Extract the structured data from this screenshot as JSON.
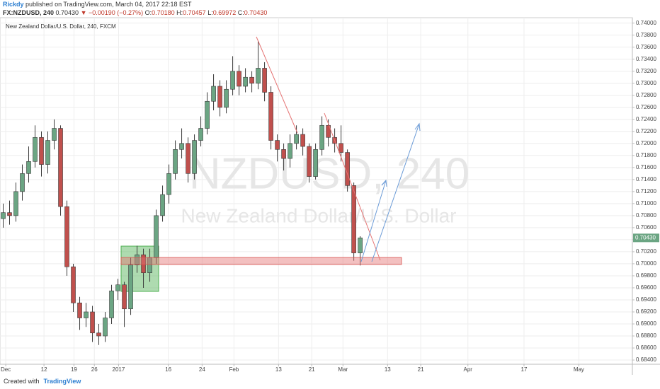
{
  "header": {
    "author": "Rickdy",
    "published": "published on TradingView.com, March 04, 2017 22:18 EST",
    "symbol": "FX:NZDUSD, 240",
    "last": "0.70430",
    "change": "▼ −0.00190 (−0.27%)",
    "ohlc": [
      {
        "label": "O:",
        "value": "0.70180"
      },
      {
        "label": "H:",
        "value": "0.70457"
      },
      {
        "label": "L:",
        "value": "0.69972"
      },
      {
        "label": "C:",
        "value": "0.70430"
      }
    ]
  },
  "chart_data": {
    "type": "candlestick",
    "title": "New Zealand Dollar/U.S. Dollar, 240, FXCM",
    "watermark": "NZDUSD, 240",
    "watermark_subtitle": "New Zealand Dollar/U.S. Dollar",
    "up_color": "#6ba583",
    "down_color": "#c0504d",
    "wick_color": "#3a3a3a",
    "grid": true,
    "x": [
      0,
      1,
      2,
      3,
      4,
      5,
      6,
      7,
      8,
      9,
      10,
      11,
      12,
      13,
      14,
      15,
      16,
      17,
      18,
      19,
      20,
      21,
      22,
      23,
      24,
      25,
      26,
      27,
      28,
      29,
      30,
      31,
      32,
      33,
      34,
      35,
      36,
      37,
      38,
      39,
      40,
      41,
      42,
      43,
      44,
      45,
      46,
      47,
      48,
      49,
      50,
      51,
      52,
      53,
      54,
      55,
      56
    ],
    "open": [
      0.7075,
      0.7085,
      0.708,
      0.712,
      0.715,
      0.717,
      0.721,
      0.7165,
      0.7205,
      0.7225,
      0.7095,
      0.6995,
      0.6935,
      0.691,
      0.692,
      0.6885,
      0.688,
      0.691,
      0.6955,
      0.6965,
      0.6925,
      0.6998,
      0.7015,
      0.6985,
      0.701,
      0.708,
      0.7115,
      0.715,
      0.719,
      0.72,
      0.715,
      0.7205,
      0.7225,
      0.727,
      0.7295,
      0.726,
      0.729,
      0.732,
      0.7295,
      0.731,
      0.73,
      0.7325,
      0.7285,
      0.7205,
      0.719,
      0.7175,
      0.72,
      0.7215,
      0.7195,
      0.7145,
      0.719,
      0.723,
      0.721,
      0.72,
      0.7185,
      0.713,
      0.7018
    ],
    "high": [
      0.71,
      0.7105,
      0.7135,
      0.7165,
      0.7195,
      0.723,
      0.722,
      0.722,
      0.724,
      0.723,
      0.7105,
      0.7,
      0.6945,
      0.6935,
      0.693,
      0.69,
      0.692,
      0.6965,
      0.6975,
      0.697,
      0.701,
      0.703,
      0.7025,
      0.7025,
      0.709,
      0.713,
      0.7165,
      0.7205,
      0.7225,
      0.721,
      0.7215,
      0.7245,
      0.7285,
      0.7315,
      0.7305,
      0.7305,
      0.7345,
      0.733,
      0.7325,
      0.732,
      0.737,
      0.7335,
      0.7295,
      0.7215,
      0.72,
      0.7215,
      0.723,
      0.7225,
      0.72,
      0.72,
      0.7245,
      0.724,
      0.7225,
      0.723,
      0.719,
      0.7135,
      0.70457
    ],
    "low": [
      0.706,
      0.7065,
      0.707,
      0.7105,
      0.7135,
      0.716,
      0.7145,
      0.715,
      0.719,
      0.708,
      0.698,
      0.692,
      0.689,
      0.6895,
      0.687,
      0.6865,
      0.687,
      0.69,
      0.694,
      0.6895,
      0.6915,
      0.6985,
      0.696,
      0.697,
      0.7,
      0.707,
      0.71,
      0.714,
      0.7175,
      0.7135,
      0.714,
      0.7195,
      0.7215,
      0.7255,
      0.7245,
      0.725,
      0.728,
      0.728,
      0.7285,
      0.7285,
      0.729,
      0.727,
      0.719,
      0.717,
      0.7155,
      0.716,
      0.719,
      0.718,
      0.7135,
      0.714,
      0.718,
      0.7195,
      0.7185,
      0.717,
      0.712,
      0.7005,
      0.69972
    ],
    "close": [
      0.7085,
      0.708,
      0.712,
      0.715,
      0.717,
      0.721,
      0.7165,
      0.7205,
      0.7225,
      0.7095,
      0.6995,
      0.6935,
      0.691,
      0.692,
      0.6885,
      0.688,
      0.691,
      0.6955,
      0.6965,
      0.6925,
      0.6998,
      0.7015,
      0.6985,
      0.701,
      0.708,
      0.7115,
      0.715,
      0.719,
      0.72,
      0.715,
      0.7205,
      0.7225,
      0.727,
      0.7295,
      0.726,
      0.729,
      0.732,
      0.7295,
      0.731,
      0.73,
      0.7325,
      0.7285,
      0.7205,
      0.719,
      0.7175,
      0.72,
      0.7215,
      0.7195,
      0.7145,
      0.719,
      0.723,
      0.721,
      0.72,
      0.7185,
      0.713,
      0.7018,
      0.7043
    ],
    "price_tag": {
      "value": 0.7043,
      "label": "0.70430"
    },
    "xlim": [
      -0.5,
      98.7
    ],
    "ylim": [
      0.6833,
      0.7409
    ],
    "xticks": [
      {
        "value": 0.4,
        "label": "Dec"
      },
      {
        "value": 6.4,
        "label": "12"
      },
      {
        "value": 11.1,
        "label": "19"
      },
      {
        "value": 14.3,
        "label": "26"
      },
      {
        "value": 18.1,
        "label": "2017"
      },
      {
        "value": 25.9,
        "label": "16"
      },
      {
        "value": 31.2,
        "label": "24"
      },
      {
        "value": 36.2,
        "label": "Feb"
      },
      {
        "value": 43.2,
        "label": "13"
      },
      {
        "value": 48.4,
        "label": "21"
      },
      {
        "value": 53.3,
        "label": "Mar"
      },
      {
        "value": 60.3,
        "label": "13"
      },
      {
        "value": 65.5,
        "label": "21"
      },
      {
        "value": 72.9,
        "label": "Apr"
      },
      {
        "value": 81.7,
        "label": "17"
      },
      {
        "value": 90.3,
        "label": "May"
      }
    ],
    "yticks": [
      {
        "value": 0.684,
        "label": "0.68400"
      },
      {
        "value": 0.686,
        "label": "0.68600"
      },
      {
        "value": 0.688,
        "label": "0.68800"
      },
      {
        "value": 0.69,
        "label": "0.69000"
      },
      {
        "value": 0.692,
        "label": "0.69200"
      },
      {
        "value": 0.694,
        "label": "0.69400"
      },
      {
        "value": 0.696,
        "label": "0.69600"
      },
      {
        "value": 0.698,
        "label": "0.69800"
      },
      {
        "value": 0.7,
        "label": "0.70000"
      },
      {
        "value": 0.702,
        "label": "0.70200"
      },
      {
        "value": 0.704,
        "label": "0.70400"
      },
      {
        "value": 0.706,
        "label": "0.70600"
      },
      {
        "value": 0.708,
        "label": "0.70800"
      },
      {
        "value": 0.71,
        "label": "0.71000"
      },
      {
        "value": 0.712,
        "label": "0.71200"
      },
      {
        "value": 0.714,
        "label": "0.71400"
      },
      {
        "value": 0.716,
        "label": "0.71600"
      },
      {
        "value": 0.718,
        "label": "0.71800"
      },
      {
        "value": 0.72,
        "label": "0.72000"
      },
      {
        "value": 0.722,
        "label": "0.72200"
      },
      {
        "value": 0.724,
        "label": "0.72400"
      },
      {
        "value": 0.726,
        "label": "0.72600"
      },
      {
        "value": 0.728,
        "label": "0.72800"
      },
      {
        "value": 0.73,
        "label": "0.73000"
      },
      {
        "value": 0.732,
        "label": "0.73200"
      },
      {
        "value": 0.734,
        "label": "0.73400"
      },
      {
        "value": 0.736,
        "label": "0.73600"
      },
      {
        "value": 0.738,
        "label": "0.73800"
      },
      {
        "value": 0.74,
        "label": "0.74000"
      }
    ]
  },
  "footer": {
    "created": "Created with",
    "brand": "TradingView"
  }
}
